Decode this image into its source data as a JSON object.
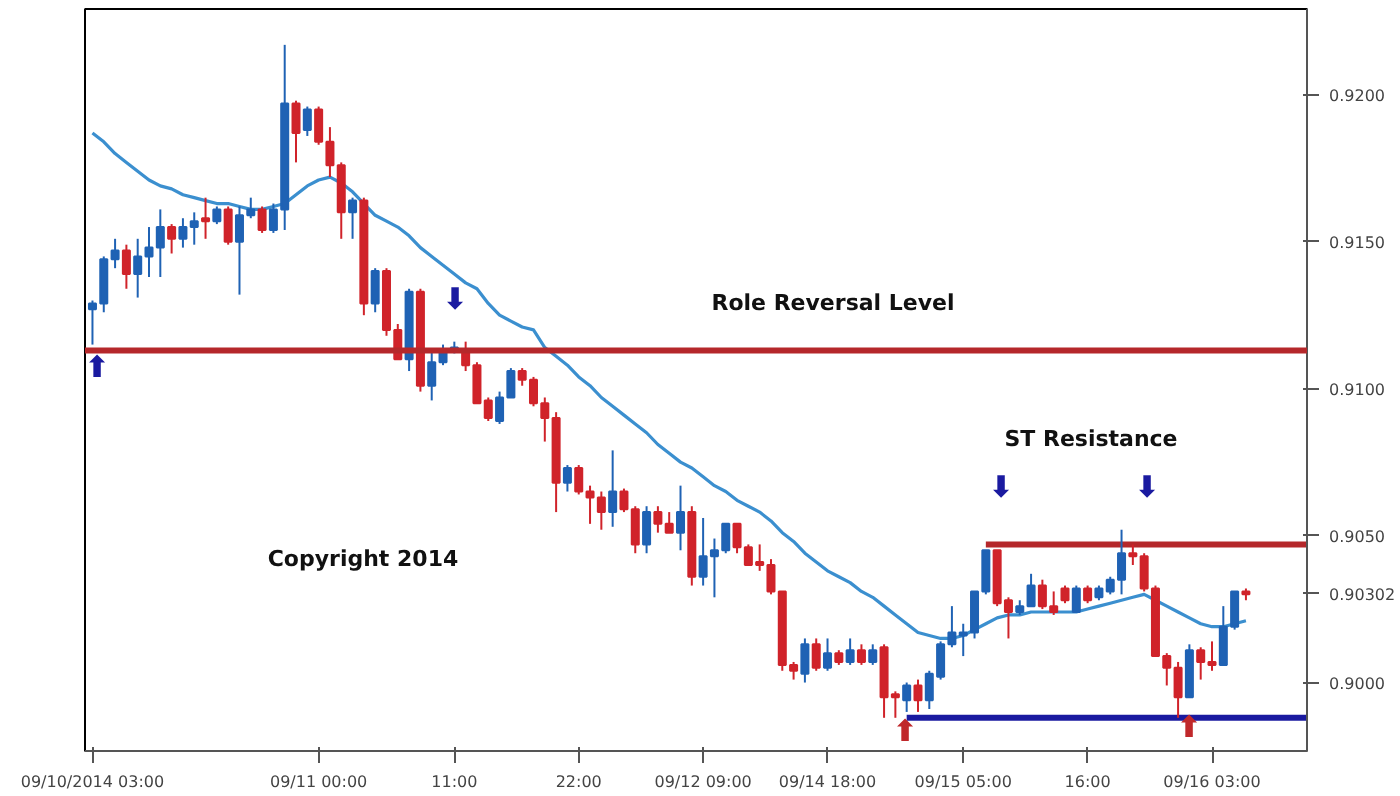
{
  "chart_data": {
    "type": "candlestick",
    "categories": [
      "09/10/2014 03:00",
      null,
      null,
      null,
      null,
      null,
      null,
      null,
      null,
      null,
      null,
      null,
      null,
      null,
      null,
      null,
      null,
      null,
      null,
      null,
      "09/11 00:00",
      null,
      null,
      null,
      null,
      null,
      null,
      null,
      null,
      null,
      null,
      null,
      "11:00",
      null,
      null,
      null,
      null,
      null,
      null,
      null,
      null,
      null,
      null,
      "22:00",
      null,
      null,
      null,
      null,
      null,
      null,
      null,
      null,
      null,
      null,
      "09/12 09:00",
      null,
      null,
      null,
      null,
      null,
      null,
      null,
      null,
      null,
      null,
      "09/14 18:00",
      null,
      null,
      null,
      null,
      null,
      null,
      null,
      null,
      null,
      null,
      null,
      "09/15 05:00",
      null,
      null,
      null,
      null,
      null,
      null,
      null,
      null,
      null,
      null,
      "16:00",
      null,
      null,
      null,
      null,
      null,
      null,
      null,
      null,
      null,
      null,
      "09/16 03:00",
      null,
      null,
      null
    ],
    "ohlc": [
      [
        0.9127,
        0.913,
        0.9115,
        0.9129
      ],
      [
        0.9129,
        0.9145,
        0.9126,
        0.9144
      ],
      [
        0.9144,
        0.9151,
        0.9141,
        0.9147
      ],
      [
        0.9147,
        0.9149,
        0.9134,
        0.9139
      ],
      [
        0.9139,
        0.9151,
        0.9131,
        0.9145
      ],
      [
        0.9145,
        0.9155,
        0.9138,
        0.9148
      ],
      [
        0.9148,
        0.9161,
        0.9138,
        0.9155
      ],
      [
        0.9155,
        0.9156,
        0.9146,
        0.9151
      ],
      [
        0.9151,
        0.9158,
        0.9148,
        0.9155
      ],
      [
        0.9155,
        0.916,
        0.9149,
        0.9157
      ],
      [
        0.9158,
        0.9165,
        0.9151,
        0.9157
      ],
      [
        0.9157,
        0.9162,
        0.9156,
        0.9161
      ],
      [
        0.9161,
        0.9162,
        0.9149,
        0.915
      ],
      [
        0.915,
        0.9162,
        0.9132,
        0.9159
      ],
      [
        0.9159,
        0.9165,
        0.9158,
        0.9161
      ],
      [
        0.9161,
        0.9162,
        0.9153,
        0.9154
      ],
      [
        0.9154,
        0.9163,
        0.9153,
        0.9161
      ],
      [
        0.9161,
        0.9217,
        0.9154,
        0.9197
      ],
      [
        0.9197,
        0.9198,
        0.9177,
        0.9187
      ],
      [
        0.9188,
        0.9196,
        0.9186,
        0.9195
      ],
      [
        0.9195,
        0.9196,
        0.9183,
        0.9184
      ],
      [
        0.9184,
        0.9189,
        0.9172,
        0.9176
      ],
      [
        0.9176,
        0.9177,
        0.9151,
        0.916
      ],
      [
        0.916,
        0.9165,
        0.9151,
        0.9164
      ],
      [
        0.9164,
        0.9165,
        0.9125,
        0.9129
      ],
      [
        0.9129,
        0.9141,
        0.9126,
        0.914
      ],
      [
        0.914,
        0.9141,
        0.9118,
        0.912
      ],
      [
        0.912,
        0.9122,
        0.911,
        0.911
      ],
      [
        0.911,
        0.9134,
        0.9106,
        0.9133
      ],
      [
        0.9133,
        0.9134,
        0.9099,
        0.9101
      ],
      [
        0.9101,
        0.9113,
        0.9096,
        0.9109
      ],
      [
        0.9109,
        0.9115,
        0.9108,
        0.9113
      ],
      [
        0.9113,
        0.9116,
        0.9112,
        0.9114
      ],
      [
        0.9113,
        0.9116,
        0.9106,
        0.9108
      ],
      [
        0.9108,
        0.9109,
        0.9095,
        0.9095
      ],
      [
        0.9096,
        0.9097,
        0.9089,
        0.909
      ],
      [
        0.9089,
        0.9099,
        0.9088,
        0.9097
      ],
      [
        0.9097,
        0.9107,
        0.9097,
        0.9106
      ],
      [
        0.9106,
        0.9107,
        0.9101,
        0.9103
      ],
      [
        0.9103,
        0.9104,
        0.9094,
        0.9095
      ],
      [
        0.9095,
        0.9097,
        0.9082,
        0.909
      ],
      [
        0.909,
        0.9092,
        0.9058,
        0.9068
      ],
      [
        0.9068,
        0.9074,
        0.9065,
        0.9073
      ],
      [
        0.9073,
        0.9074,
        0.9064,
        0.9065
      ],
      [
        0.9065,
        0.9067,
        0.9054,
        0.9063
      ],
      [
        0.9063,
        0.9065,
        0.9052,
        0.9058
      ],
      [
        0.9058,
        0.9079,
        0.9053,
        0.9065
      ],
      [
        0.9065,
        0.9066,
        0.9058,
        0.9059
      ],
      [
        0.9059,
        0.906,
        0.9044,
        0.9047
      ],
      [
        0.9047,
        0.906,
        0.9044,
        0.9058
      ],
      [
        0.9058,
        0.906,
        0.9051,
        0.9054
      ],
      [
        0.9054,
        0.9058,
        0.9051,
        0.9051
      ],
      [
        0.9051,
        0.9067,
        0.9045,
        0.9058
      ],
      [
        0.9058,
        0.906,
        0.9033,
        0.9036
      ],
      [
        0.9036,
        0.9056,
        0.9033,
        0.9043
      ],
      [
        0.9043,
        0.9049,
        0.9029,
        0.9045
      ],
      [
        0.9045,
        0.9054,
        0.9044,
        0.9054
      ],
      [
        0.9054,
        0.9054,
        0.9044,
        0.9046
      ],
      [
        0.9046,
        0.9047,
        0.904,
        0.904
      ],
      [
        0.9041,
        0.9047,
        0.9038,
        0.904
      ],
      [
        0.904,
        0.9042,
        0.903,
        0.9031
      ],
      [
        0.9031,
        0.9031,
        0.9004,
        0.9006
      ],
      [
        0.9006,
        0.9007,
        0.9001,
        0.9004
      ],
      [
        0.9003,
        0.9015,
        0.9,
        0.9013
      ],
      [
        0.9013,
        0.9015,
        0.9004,
        0.9005
      ],
      [
        0.9005,
        0.9015,
        0.9004,
        0.901
      ],
      [
        0.901,
        0.9011,
        0.9006,
        0.9007
      ],
      [
        0.9007,
        0.9015,
        0.9006,
        0.9011
      ],
      [
        0.9011,
        0.9013,
        0.9006,
        0.9007
      ],
      [
        0.9007,
        0.9013,
        0.9006,
        0.9011
      ],
      [
        0.9012,
        0.9013,
        0.8988,
        0.8995
      ],
      [
        0.8996,
        0.8997,
        0.8988,
        0.8995
      ],
      [
        0.8994,
        0.9,
        0.899,
        0.8999
      ],
      [
        0.8999,
        0.9001,
        0.899,
        0.8994
      ],
      [
        0.8994,
        0.9004,
        0.8991,
        0.9003
      ],
      [
        0.9002,
        0.9014,
        0.9001,
        0.9013
      ],
      [
        0.9013,
        0.9026,
        0.9012,
        0.9017
      ],
      [
        0.9016,
        0.902,
        0.9009,
        0.9017
      ],
      [
        0.9017,
        0.9031,
        0.9015,
        0.9031
      ],
      [
        0.9031,
        0.9045,
        0.903,
        0.9045
      ],
      [
        0.9045,
        0.9045,
        0.9026,
        0.9027
      ],
      [
        0.9028,
        0.9029,
        0.9015,
        0.9024
      ],
      [
        0.9024,
        0.9028,
        0.9023,
        0.9026
      ],
      [
        0.9026,
        0.9037,
        0.9026,
        0.9033
      ],
      [
        0.9033,
        0.9035,
        0.9025,
        0.9026
      ],
      [
        0.9026,
        0.9031,
        0.9023,
        0.9024
      ],
      [
        0.9032,
        0.9033,
        0.9027,
        0.9028
      ],
      [
        0.9024,
        0.9033,
        0.9024,
        0.9032
      ],
      [
        0.9032,
        0.9033,
        0.9027,
        0.9028
      ],
      [
        0.9029,
        0.9033,
        0.9028,
        0.9032
      ],
      [
        0.9031,
        0.9036,
        0.903,
        0.9035
      ],
      [
        0.9035,
        0.9052,
        0.903,
        0.9044
      ],
      [
        0.9044,
        0.9047,
        0.904,
        0.9043
      ],
      [
        0.9043,
        0.9044,
        0.9031,
        0.9032
      ],
      [
        0.9032,
        0.9033,
        0.9009,
        0.9009
      ],
      [
        0.9009,
        0.901,
        0.8999,
        0.9005
      ],
      [
        0.9005,
        0.9007,
        0.8988,
        0.8995
      ],
      [
        0.8995,
        0.9013,
        0.8995,
        0.9011
      ],
      [
        0.9011,
        0.9012,
        0.9001,
        0.9007
      ],
      [
        0.9007,
        0.9014,
        0.9004,
        0.9006
      ],
      [
        0.9006,
        0.9026,
        0.9006,
        0.9019
      ],
      [
        0.9019,
        0.9031,
        0.9018,
        0.9031
      ],
      [
        0.9031,
        0.9032,
        0.9028,
        0.903
      ]
    ],
    "colors": [
      "#1f62b4",
      "#1f62b4",
      "#1f62b4",
      "#d0232a",
      "#1f62b4",
      "#1f62b4",
      "#1f62b4",
      "#d0232a",
      "#1f62b4",
      "#1f62b4",
      "#d0232a",
      "#1f62b4",
      "#d0232a",
      "#1f62b4",
      "#1f62b4",
      "#d0232a",
      "#1f62b4",
      "#1f62b4",
      "#d0232a",
      "#1f62b4",
      "#d0232a",
      "#d0232a",
      "#d0232a",
      "#1f62b4",
      "#d0232a",
      "#1f62b4",
      "#d0232a",
      "#d0232a",
      "#1f62b4",
      "#d0232a",
      "#1f62b4",
      "#1f62b4",
      "#1f62b4",
      "#d0232a",
      "#d0232a",
      "#d0232a",
      "#1f62b4",
      "#1f62b4",
      "#d0232a",
      "#d0232a",
      "#d0232a",
      "#d0232a",
      "#1f62b4",
      "#d0232a",
      "#d0232a",
      "#d0232a",
      "#1f62b4",
      "#d0232a",
      "#d0232a",
      "#1f62b4",
      "#d0232a",
      "#d0232a",
      "#1f62b4",
      "#d0232a",
      "#1f62b4",
      "#1f62b4",
      "#1f62b4",
      "#d0232a",
      "#d0232a",
      "#d0232a",
      "#d0232a",
      "#d0232a",
      "#d0232a",
      "#1f62b4",
      "#d0232a",
      "#1f62b4",
      "#d0232a",
      "#1f62b4",
      "#d0232a",
      "#1f62b4",
      "#d0232a",
      "#d0232a",
      "#1f62b4",
      "#d0232a",
      "#1f62b4",
      "#1f62b4",
      "#1f62b4",
      "#1f62b4",
      "#1f62b4",
      "#1f62b4",
      "#d0232a",
      "#d0232a",
      "#1f62b4",
      "#1f62b4",
      "#d0232a",
      "#d0232a",
      "#d0232a",
      "#1f62b4",
      "#d0232a",
      "#1f62b4",
      "#1f62b4",
      "#1f62b4",
      "#d0232a",
      "#d0232a",
      "#d0232a",
      "#d0232a",
      "#d0232a",
      "#1f62b4",
      "#d0232a",
      "#d0232a",
      "#1f62b4",
      "#1f62b4",
      "#d0232a"
    ],
    "series": [
      {
        "type": "line",
        "color": "#3b8fcf",
        "values": [
          0.9187,
          0.9184,
          0.918,
          0.9177,
          0.9174,
          0.9171,
          0.9169,
          0.9168,
          0.9166,
          0.9165,
          0.9164,
          0.9163,
          0.9163,
          0.9162,
          0.9161,
          0.9161,
          0.9162,
          0.9163,
          0.9166,
          0.9169,
          0.9171,
          0.9172,
          0.917,
          0.9167,
          0.9163,
          0.9159,
          0.9157,
          0.9155,
          0.9152,
          0.9148,
          0.9145,
          0.9142,
          0.9139,
          0.9136,
          0.9134,
          0.9129,
          0.9125,
          0.9123,
          0.9121,
          0.912,
          0.9114,
          0.9111,
          0.9108,
          0.9104,
          0.9101,
          0.9097,
          0.9094,
          0.9091,
          0.9088,
          0.9085,
          0.9081,
          0.9078,
          0.9075,
          0.9073,
          0.907,
          0.9067,
          0.9065,
          0.9062,
          0.906,
          0.9058,
          0.9055,
          0.9051,
          0.9048,
          0.9044,
          0.9041,
          0.9038,
          0.9036,
          0.9034,
          0.9031,
          0.9029,
          0.9026,
          0.9023,
          0.902,
          0.9017,
          0.9016,
          0.9015,
          0.9015,
          0.9016,
          0.9018,
          0.902,
          0.9022,
          0.9023,
          0.9023,
          0.9024,
          0.9024,
          0.9024,
          0.9024,
          0.9024,
          0.9025,
          0.9026,
          0.9027,
          0.9028,
          0.9029,
          0.903,
          0.9028,
          0.9026,
          0.9024,
          0.9022,
          0.902,
          0.9019,
          0.9019,
          0.902,
          0.9021
        ]
      },
      {
        "type": "line",
        "color": "#b5282b",
        "values": [
          null,
          null,
          null,
          null,
          null,
          null,
          null,
          null,
          null,
          null,
          null,
          null,
          null,
          null,
          null,
          null,
          null,
          null,
          null,
          null,
          null,
          null,
          null,
          null,
          null,
          null,
          null,
          null,
          null,
          null,
          null,
          null,
          null,
          null,
          null,
          null,
          null,
          null,
          null,
          null,
          null,
          null,
          null,
          null,
          null,
          null,
          null,
          null,
          null,
          null,
          null,
          null,
          null,
          null,
          null,
          null,
          null,
          null,
          null,
          null,
          null,
          null,
          null,
          null,
          null,
          null,
          null,
          null,
          null,
          null,
          null,
          null,
          null,
          null,
          null,
          null,
          null,
          null,
          null,
          0.9047,
          0.9047,
          0.9047,
          0.9047,
          0.9047,
          0.9047,
          0.9047,
          0.9047,
          0.9047,
          0.9047,
          0.9047,
          0.9047,
          0.9047,
          0.9047,
          0.9047,
          0.9047,
          0.9047,
          0.9047,
          0.9047,
          0.9047,
          0.9047,
          0.9047,
          0.9047,
          0.9047
        ]
      },
      {
        "type": "line",
        "color": "#1a1aa0",
        "values": [
          null,
          null,
          null,
          null,
          null,
          null,
          null,
          null,
          null,
          null,
          null,
          null,
          null,
          null,
          null,
          null,
          null,
          null,
          null,
          null,
          null,
          null,
          null,
          null,
          null,
          null,
          null,
          null,
          null,
          null,
          null,
          null,
          null,
          null,
          null,
          null,
          null,
          null,
          null,
          null,
          null,
          null,
          null,
          null,
          null,
          null,
          null,
          null,
          null,
          null,
          null,
          null,
          null,
          null,
          null,
          null,
          null,
          null,
          null,
          null,
          null,
          null,
          null,
          null,
          null,
          null,
          null,
          null,
          null,
          null,
          null,
          null,
          0.8988,
          0.8988,
          0.8988,
          0.8988,
          0.8988,
          0.8988,
          0.8988,
          0.8988,
          0.8988,
          0.8988,
          0.8988,
          0.8988,
          0.8988,
          0.8988,
          0.8988,
          0.8988,
          0.8988,
          0.8988,
          0.8988,
          0.8988,
          0.8988,
          0.8988,
          0.8988,
          0.8988,
          0.8988,
          0.8988,
          0.8988,
          0.8988,
          0.8988,
          0.8988,
          0.8988
        ]
      }
    ],
    "ref_lines": [
      {
        "axis": "y",
        "value": 0.9113,
        "color": "#b5282b"
      }
    ],
    "annotations": [
      "Role Reversal Level",
      "ST Resistance",
      "Copyright 2014",
      "⬆",
      "⬇",
      "⬇",
      "⬇",
      "⬆",
      "⬆"
    ],
    "ylim": [
      0.89767,
      0.92292
    ],
    "yticks": [
      {
        "value": 0.9,
        "label": "0.9000"
      },
      {
        "value": 0.90302,
        "label": "0.90302"
      },
      {
        "value": 0.905,
        "label": "0.9050"
      },
      {
        "value": 0.91,
        "label": "0.9100"
      },
      {
        "value": 0.915,
        "label": "0.9150"
      },
      {
        "value": 0.92,
        "label": "0.9200"
      }
    ],
    "grid": false
  }
}
